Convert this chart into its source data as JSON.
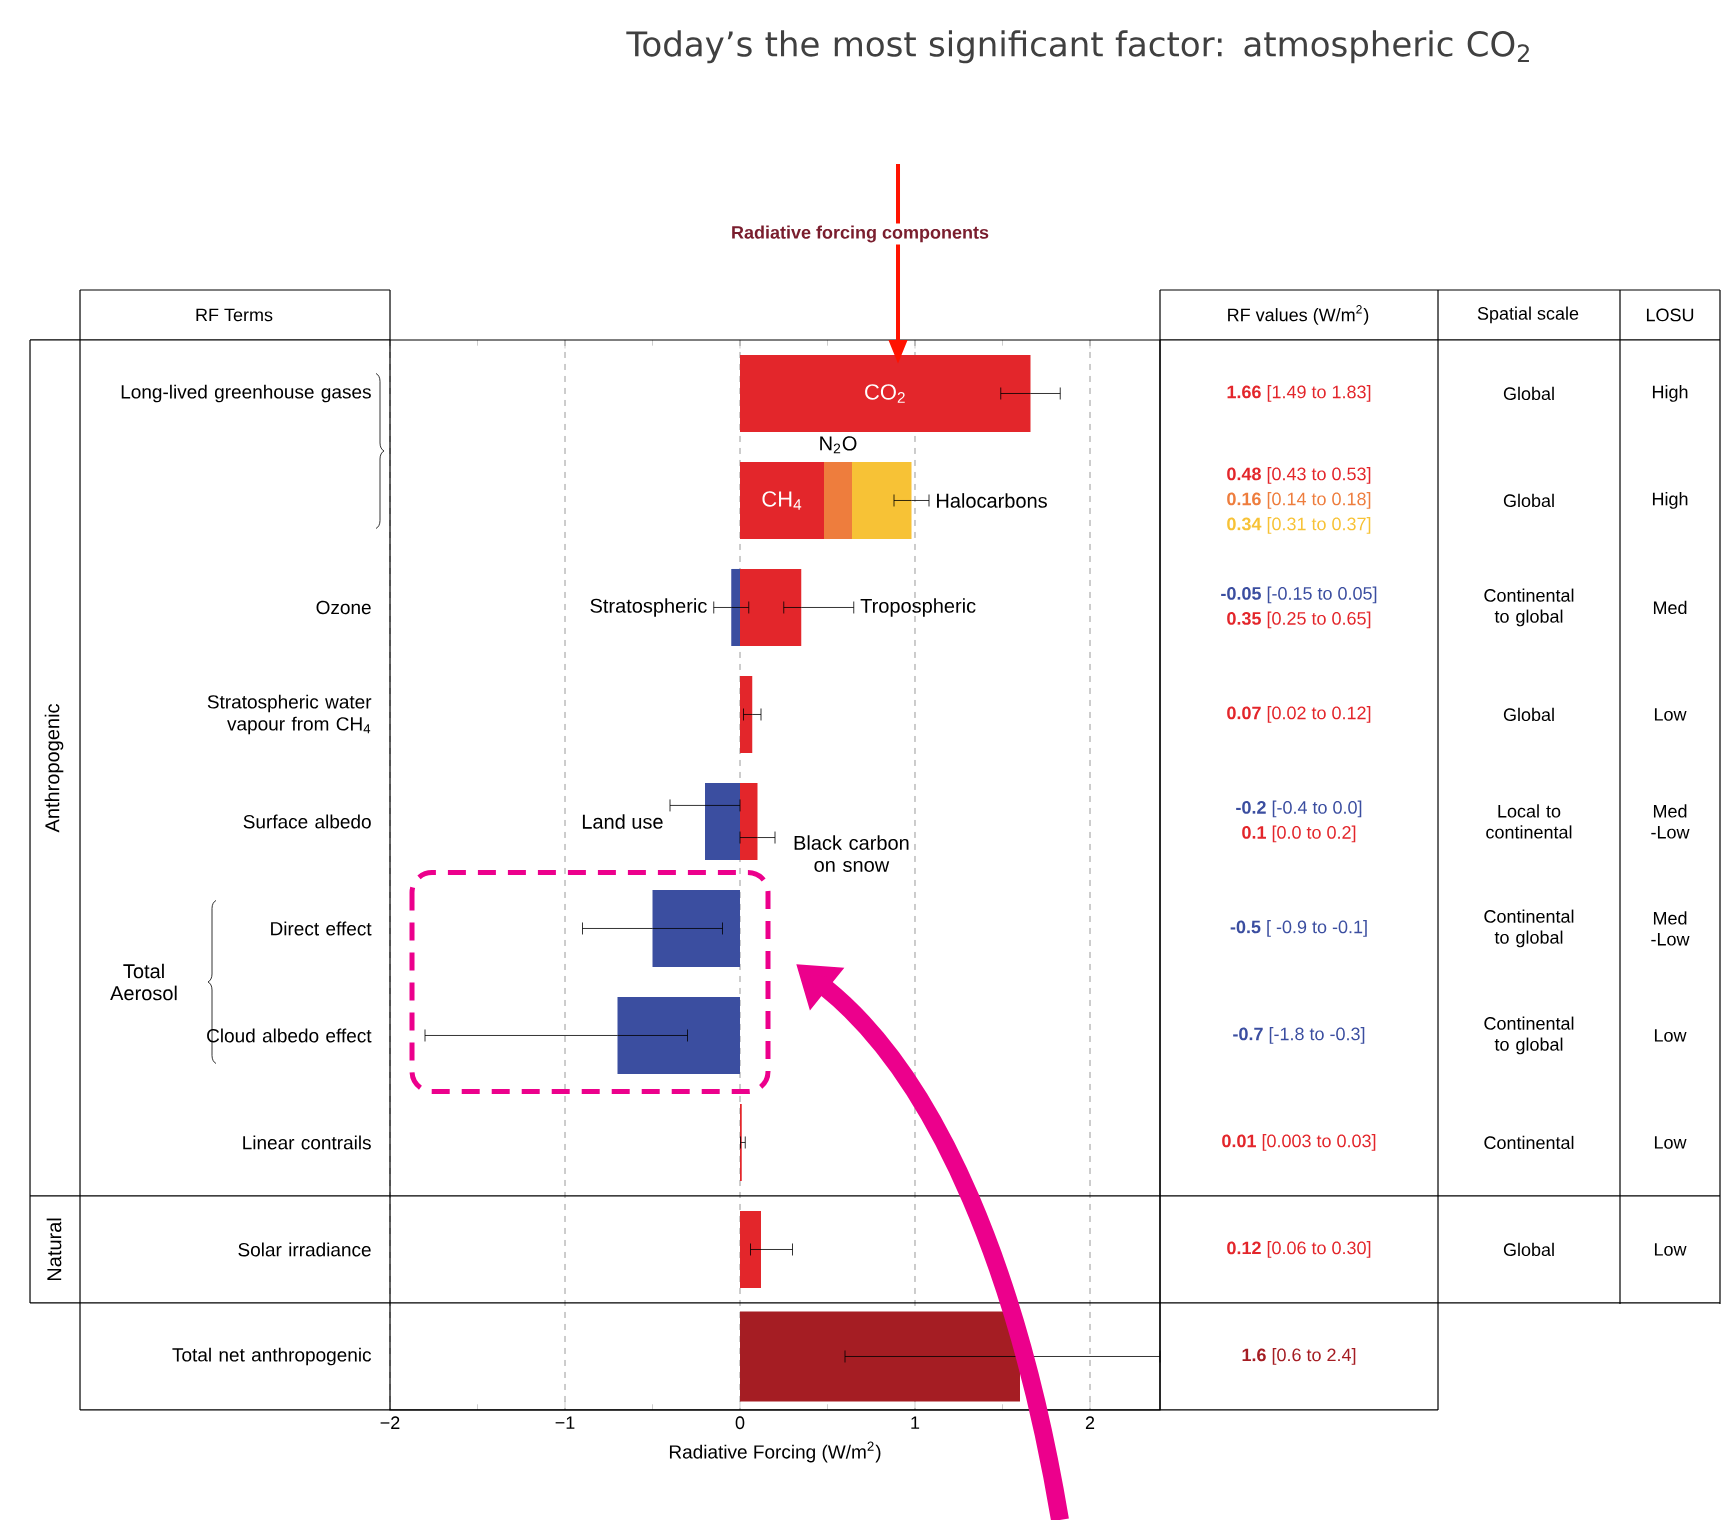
{
  "chart_data": {
    "type": "bar",
    "orientation": "horizontal",
    "title": "Radiative forcing components",
    "xlabel": "Radiative Forcing (W/m$^{2}$)",
    "categories": [
      "Long-lived greenhouse gases",
      null,
      "Ozone",
      "Stratospheric water vapour from CH$_{4}$",
      "Surface albedo",
      "Direct effect",
      "Cloud albedo effect",
      "Linear contrails",
      "Solar irradiance",
      "Total net anthropogenic"
    ],
    "xlim": [
      -2,
      2.4
    ],
    "xticks": [
      {
        "value": -2,
        "label": "−2"
      },
      {
        "value": -1,
        "label": "−1"
      },
      0,
      1,
      2
    ],
    "grid": "x",
    "series": [
      {
        "name": "CO$_{2}$",
        "color": "#e3262b",
        "values": [
          1.66,
          null,
          null,
          null,
          null,
          null,
          null,
          null,
          null,
          null
        ],
        "base": [
          0,
          null,
          null,
          null,
          null,
          null,
          null,
          null,
          null,
          null
        ],
        "errors": [
          [
            1.49,
            1.83
          ],
          null,
          null,
          null,
          null,
          null,
          null,
          null,
          null,
          null
        ]
      },
      {
        "name": "CH$_{4}$",
        "color": "#e3262b",
        "values": [
          null,
          0.48,
          null,
          null,
          null,
          null,
          null,
          null,
          null,
          null
        ],
        "base": [
          null,
          0,
          null,
          null,
          null,
          null,
          null,
          null,
          null,
          null
        ],
        "errors": [
          null,
          null,
          null,
          null,
          null,
          null,
          null,
          null,
          null,
          null
        ]
      },
      {
        "name": "N$_{2}$O",
        "color": "#ee7d3d",
        "values": [
          null,
          0.16,
          null,
          null,
          null,
          null,
          null,
          null,
          null,
          null
        ],
        "base": [
          null,
          0.48,
          null,
          null,
          null,
          null,
          null,
          null,
          null,
          null
        ],
        "errors": [
          null,
          null,
          null,
          null,
          null,
          null,
          null,
          null,
          null,
          null
        ]
      },
      {
        "name": "Halocarbons",
        "color": "#f7c236",
        "values": [
          null,
          0.34,
          null,
          null,
          null,
          null,
          null,
          null,
          null,
          null
        ],
        "base": [
          null,
          0.64,
          null,
          null,
          null,
          null,
          null,
          null,
          null,
          null
        ],
        "errors": [
          null,
          [
            0.88,
            1.08
          ],
          null,
          null,
          null,
          null,
          null,
          null,
          null,
          null
        ]
      },
      {
        "name": "Stratospheric",
        "color": "#3b4ea0",
        "values": [
          null,
          null,
          -0.05,
          null,
          null,
          null,
          null,
          null,
          null,
          null
        ],
        "base": [
          null,
          null,
          0,
          null,
          null,
          null,
          null,
          null,
          null,
          null
        ],
        "errors": [
          null,
          null,
          [
            -0.15,
            0.05
          ],
          null,
          null,
          null,
          null,
          null,
          null,
          null
        ]
      },
      {
        "name": "Tropospheric",
        "color": "#e3262b",
        "values": [
          null,
          null,
          0.35,
          null,
          null,
          null,
          null,
          null,
          null,
          null
        ],
        "base": [
          null,
          null,
          0,
          null,
          null,
          null,
          null,
          null,
          null,
          null
        ],
        "errors": [
          null,
          null,
          [
            0.25,
            0.65
          ],
          null,
          null,
          null,
          null,
          null,
          null,
          null
        ]
      },
      {
        "color": "#e3262b",
        "values": [
          null,
          null,
          null,
          0.07,
          null,
          null,
          null,
          0.01,
          0.12,
          null
        ],
        "base": [
          null,
          null,
          null,
          0,
          null,
          null,
          null,
          0,
          0,
          null
        ],
        "errors": [
          null,
          null,
          null,
          [
            0.02,
            0.12
          ],
          null,
          null,
          null,
          [
            0.003,
            0.03
          ],
          [
            0.06,
            0.3
          ],
          null
        ]
      },
      {
        "name": "Land use",
        "color": "#3b4ea0",
        "values": [
          null,
          null,
          null,
          null,
          -0.2,
          null,
          null,
          null,
          null,
          null
        ],
        "base": [
          null,
          null,
          null,
          null,
          0,
          null,
          null,
          null,
          null,
          null
        ],
        "errors": [
          null,
          null,
          null,
          null,
          [
            -0.4,
            0.0
          ],
          null,
          null,
          null,
          null,
          null
        ]
      },
      {
        "name": "Black carbon on snow",
        "color": "#e3262b",
        "values": [
          null,
          null,
          null,
          null,
          0.1,
          null,
          null,
          null,
          null,
          null
        ],
        "base": [
          null,
          null,
          null,
          null,
          0,
          null,
          null,
          null,
          null,
          null
        ],
        "errors": [
          null,
          null,
          null,
          null,
          [
            0.0,
            0.2
          ],
          null,
          null,
          null,
          null,
          null
        ]
      },
      {
        "color": "#3b4ea0",
        "values": [
          null,
          null,
          null,
          null,
          null,
          -0.5,
          -0.7,
          null,
          null,
          null
        ],
        "base": [
          null,
          null,
          null,
          null,
          null,
          0,
          0,
          null,
          null,
          null
        ],
        "errors": [
          null,
          null,
          null,
          null,
          null,
          [
            -0.9,
            -0.1
          ],
          [
            -1.8,
            -0.3
          ],
          null,
          null,
          null
        ]
      },
      {
        "color": "#a51d23",
        "values": [
          null,
          null,
          null,
          null,
          null,
          null,
          null,
          null,
          null,
          1.6
        ],
        "base": [
          null,
          null,
          null,
          null,
          null,
          null,
          null,
          null,
          null,
          0
        ],
        "errors": [
          null,
          null,
          null,
          null,
          null,
          null,
          null,
          null,
          null,
          [
            0.6,
            2.4
          ]
        ]
      }
    ],
    "annotations": [
      "Today’s the most significant factor: atmospheric CO$_{2}$",
      "Total Aerosol",
      "Anthropogenic",
      "Natural",
      "RF Terms",
      "RF values (W/m$^{2}$)",
      "Spatial scale",
      "LOSU",
      "**1.66** [1.49 to 1.83]",
      "**0.48** [0.43 to 0.53]",
      "**0.16** [0.14 to 0.18]",
      "**0.34** [0.31 to 0.37]",
      "**-0.05** [-0.15 to 0.05]",
      "**0.35** [0.25 to 0.65]",
      "**0.07** [0.02 to 0.12]",
      "**-0.2** [-0.4 to 0.0]",
      "**0.1** [0.0 to 0.2]",
      "**-0.5** [ -0.9 to -0.1]",
      "**-0.7** [-1.8 to -0.3]",
      "**0.01** [0.003 to 0.03]",
      "**0.12** [0.06 to 0.30]",
      "**1.6** [0.6 to 2.4]",
      "Global",
      "Global",
      "Continental to global",
      "Global",
      "Local to continental",
      "Continental to global",
      "Continental to global",
      "Continental",
      "Global",
      "High",
      "High",
      "Med",
      "Low",
      "Med -Low",
      "Med -Low",
      "Low",
      "Low",
      "Low"
    ]
  }
}
